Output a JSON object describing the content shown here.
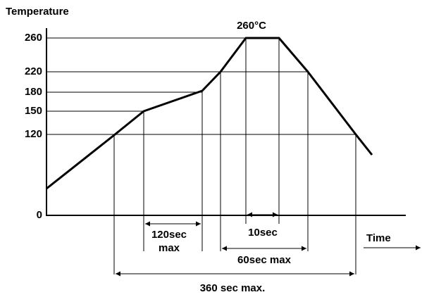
{
  "axes": {
    "y_label": "Temperature",
    "x_label": "Time",
    "y_ticks": [
      "260",
      "220",
      "180",
      "150",
      "120",
      "0"
    ]
  },
  "annotations": {
    "peak": "260°C",
    "hold_120": [
      "120sec",
      "max"
    ],
    "hold_10": "10sec",
    "hold_60": "60sec max",
    "total": "360 sec max."
  }
}
